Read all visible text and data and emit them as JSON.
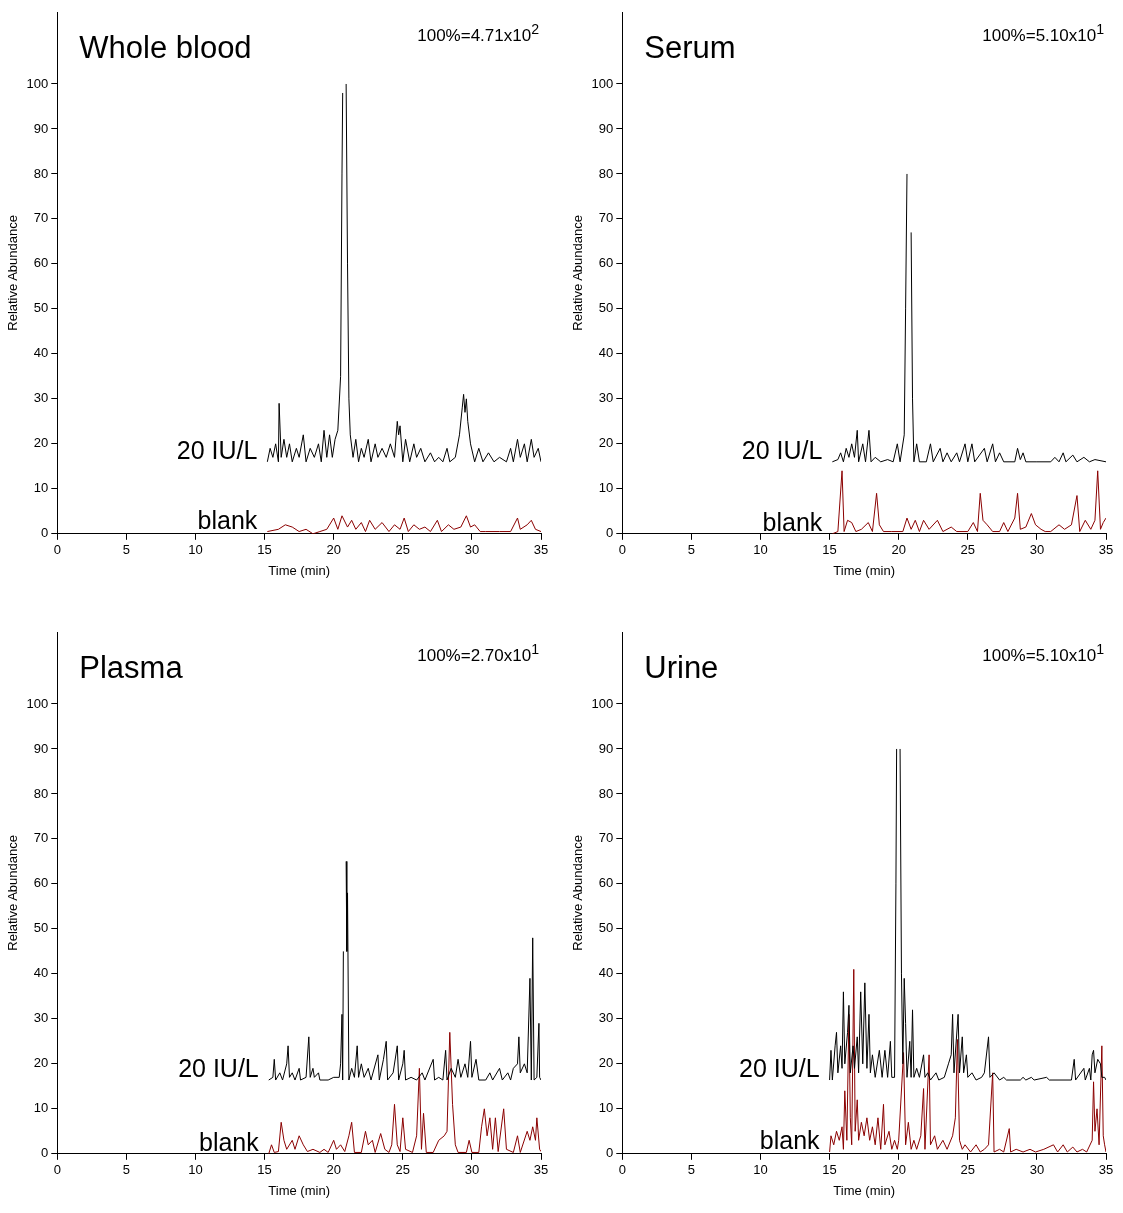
{
  "chart_data": [
    {
      "type": "line",
      "title": "Whole blood",
      "annotations": [
        "100%=4.71x10$^{2}$"
      ],
      "xlabel": "Time (min)",
      "ylabel": "Relative Abundance",
      "xlim": [
        0,
        35
      ],
      "ylim": [
        0,
        116
      ],
      "xticks": [
        0,
        5,
        10,
        15,
        20,
        25,
        30,
        35
      ],
      "yticks": [
        0,
        10,
        20,
        30,
        40,
        50,
        60,
        70,
        80,
        90,
        100
      ],
      "marker": "none",
      "line_style": "solid",
      "series": [
        {
          "name": "20 IU/L",
          "color": "#000000",
          "x": [
            15.2,
            15.4,
            15.6,
            15.8,
            16.0,
            16.05,
            16.2,
            16.4,
            16.6,
            16.8,
            17.0,
            17.3,
            17.5,
            17.8,
            18.0,
            18.3,
            18.6,
            18.9,
            19.1,
            19.3,
            19.5,
            19.7,
            19.9,
            20.1,
            20.3,
            20.5,
            20.6,
            20.65,
            20.7,
            20.8,
            20.9,
            21.0,
            21.1,
            21.2,
            21.4,
            21.6,
            21.8,
            22.0,
            22.2,
            22.5,
            22.7,
            23.0,
            23.2,
            23.5,
            23.8,
            24.1,
            24.4,
            24.6,
            24.7,
            24.8,
            25.0,
            25.2,
            25.5,
            25.8,
            26.0,
            26.3,
            26.6,
            27.0,
            27.3,
            27.6,
            27.9,
            28.2,
            28.4,
            28.8,
            29.1,
            29.3,
            29.4,
            29.5,
            29.6,
            29.7,
            29.9,
            30.2,
            30.5,
            30.8,
            31.2,
            31.6,
            32.0,
            32.5,
            32.8,
            33.0,
            33.3,
            33.5,
            33.8,
            34.0,
            34.3,
            34.5,
            34.8,
            35.0
          ],
          "values": [
            16,
            19,
            17,
            20,
            16,
            29,
            17,
            21,
            17,
            20,
            16,
            19,
            17,
            22,
            16,
            19,
            17,
            20,
            16,
            23,
            17,
            22,
            17,
            21,
            23,
            35,
            80,
            98,
            null,
            null,
            100,
            60,
            30,
            22,
            17,
            21,
            16,
            19,
            17,
            21,
            16,
            20,
            17,
            19,
            17,
            20,
            17,
            25,
            22,
            24,
            16,
            21,
            16,
            20,
            17,
            19,
            16,
            18,
            16,
            17,
            16,
            19,
            16,
            17,
            22,
            28,
            31,
            27,
            30,
            25,
            20,
            16,
            19,
            16,
            18,
            16,
            17,
            16,
            19,
            16,
            21,
            17,
            20,
            16,
            21,
            17,
            19,
            16
          ]
        },
        {
          "name": "blank",
          "color": "#8b0000",
          "x": [
            15.2,
            16,
            16.5,
            17,
            17.5,
            18,
            18.5,
            19,
            19.5,
            20,
            20.3,
            20.6,
            21,
            21.3,
            21.6,
            22,
            22.3,
            22.6,
            23,
            23.5,
            24,
            24.4,
            24.8,
            25.1,
            25.4,
            25.8,
            26.2,
            26.6,
            27,
            27.5,
            27.8,
            28.3,
            28.7,
            29.2,
            29.6,
            29.9,
            30.2,
            30.6,
            31,
            32,
            32.8,
            33.3,
            33.5,
            34,
            34.3,
            34.6,
            35
          ],
          "values": [
            0.5,
            1,
            2,
            1.5,
            0.5,
            1,
            0,
            0.5,
            1,
            3.5,
            1,
            4,
            1.5,
            3,
            1,
            2.5,
            0.5,
            3,
            1,
            2.5,
            0.5,
            2,
            1,
            3.5,
            0.5,
            2,
            1,
            1.5,
            0.5,
            3,
            0.5,
            2,
            1,
            1.5,
            4,
            1.5,
            2,
            0.5,
            0.5,
            0.5,
            0.5,
            3.5,
            1,
            2,
            3,
            1,
            0.5
          ]
        }
      ]
    },
    {
      "type": "line",
      "title": "Serum",
      "annotations": [
        "100%=5.10x10$^{1}$"
      ],
      "xlabel": "Time (min)",
      "ylabel": "Relative Abundance",
      "xlim": [
        0,
        35
      ],
      "ylim": [
        0,
        116
      ],
      "xticks": [
        0,
        5,
        10,
        15,
        20,
        25,
        30,
        35
      ],
      "yticks": [
        0,
        10,
        20,
        30,
        40,
        50,
        60,
        70,
        80,
        90,
        100
      ],
      "marker": "none",
      "line_style": "solid",
      "series": [
        {
          "name": "20 IU/L",
          "color": "#000000",
          "x": [
            15.2,
            15.6,
            15.8,
            16.0,
            16.2,
            16.4,
            16.6,
            16.8,
            17.0,
            17.1,
            17.4,
            17.6,
            17.85,
            18.0,
            18.3,
            18.7,
            19.2,
            19.6,
            19.9,
            20.1,
            20.4,
            20.5,
            20.6,
            20.7,
            20.8,
            20.9,
            21.0,
            21.1,
            21.3,
            21.5,
            22.0,
            22.3,
            22.5,
            23.0,
            23.2,
            23.5,
            23.8,
            24.2,
            24.4,
            24.8,
            25.0,
            25.3,
            25.5,
            26.2,
            26.4,
            26.8,
            27.0,
            27.3,
            27.6,
            28.4,
            28.6,
            28.8,
            29.0,
            29.2,
            30.0,
            31.0,
            31.3,
            31.6,
            31.9,
            32.1,
            32.6,
            32.9,
            33.4,
            33.8,
            34.2,
            35.0
          ],
          "values": [
            16,
            16.5,
            18,
            16,
            19,
            17,
            20,
            17,
            23,
            16,
            20,
            16,
            23,
            16,
            17,
            16,
            16.5,
            16,
            20,
            16,
            22,
            50,
            80,
            null,
            null,
            67,
            30,
            16,
            20,
            16,
            16,
            20,
            16,
            19,
            16,
            18,
            16,
            18,
            16,
            20,
            16,
            20,
            16,
            19,
            16,
            20,
            16,
            18,
            16,
            16,
            19,
            16.5,
            18,
            16,
            16,
            16,
            17,
            16,
            18,
            16,
            17.5,
            16,
            17,
            16,
            16.5,
            16
          ]
        },
        {
          "name": "blank",
          "color": "#8b0000",
          "x": [
            15.2,
            15.6,
            15.9,
            16.05,
            16.3,
            16.6,
            16.9,
            17.3,
            17.8,
            18.1,
            18.4,
            18.6,
            18.9,
            19.5,
            20.3,
            20.6,
            20.9,
            21.2,
            21.5,
            21.8,
            22.2,
            22.8,
            23.2,
            23.8,
            24.2,
            25.0,
            25.4,
            25.7,
            25.9,
            26.1,
            26.4,
            26.8,
            27.3,
            27.6,
            27.9,
            28.4,
            28.6,
            28.8,
            29.2,
            29.6,
            29.9,
            30.3,
            30.6,
            31.0,
            31.6,
            32.0,
            32.5,
            32.9,
            33.1,
            33.5,
            33.9,
            34.2,
            34.4,
            34.6,
            34.8,
            35.0
          ],
          "values": [
            0,
            0.5,
            14,
            0.5,
            3,
            2.5,
            0.5,
            1,
            2.5,
            0.5,
            9,
            2,
            0.5,
            0.5,
            0.5,
            3.5,
            1,
            3,
            0.5,
            3,
            1,
            3,
            0.5,
            1.5,
            0.5,
            0.5,
            2.5,
            0.5,
            9,
            3,
            2,
            0.5,
            0.5,
            2.5,
            0.5,
            3.5,
            9,
            1,
            1.5,
            4.5,
            2,
            1,
            0.5,
            0.5,
            2,
            1,
            2,
            8.5,
            0.5,
            3,
            1,
            3,
            14,
            1,
            2.5,
            3.5
          ]
        }
      ]
    },
    {
      "type": "line",
      "title": "Plasma",
      "annotations": [
        "100%=2.70x10$^{1}$"
      ],
      "xlabel": "Time (min)",
      "ylabel": "Relative Abundance",
      "xlim": [
        0,
        35
      ],
      "ylim": [
        0,
        116
      ],
      "xticks": [
        0,
        5,
        10,
        15,
        20,
        25,
        30,
        35
      ],
      "yticks": [
        0,
        10,
        20,
        30,
        40,
        50,
        60,
        70,
        80,
        90,
        100
      ],
      "marker": "none",
      "line_style": "solid",
      "series": [
        {
          "name": "20 IU/L",
          "color": "#000000",
          "x": [
            15.3,
            15.6,
            15.7,
            15.8,
            16.1,
            16.3,
            16.6,
            16.7,
            16.8,
            17.0,
            17.2,
            17.5,
            17.6,
            18.0,
            18.2,
            18.3,
            18.5,
            18.6,
            18.9,
            19.0,
            19.6,
            20.0,
            20.4,
            20.5,
            20.6,
            20.65,
            20.7,
            20.8,
            20.9,
            20.95,
            21.0,
            21.1,
            21.3,
            21.5,
            21.7,
            21.8,
            22.0,
            22.2,
            22.5,
            22.7,
            23.2,
            23.3,
            23.6,
            23.8,
            23.9,
            24.3,
            24.6,
            24.7,
            25.0,
            25.1,
            25.2,
            25.6,
            26.0,
            26.4,
            26.6,
            27.2,
            27.3,
            27.6,
            27.9,
            28.1,
            28.2,
            28.5,
            28.8,
            29.0,
            29.2,
            29.5,
            29.7,
            29.9,
            30.0,
            30.3,
            30.5,
            31.0,
            31.3,
            31.5,
            32.0,
            32.2,
            32.6,
            32.8,
            33.0,
            33.3,
            33.4,
            33.5,
            33.8,
            34.0,
            34.2,
            34.3,
            34.4,
            34.5,
            34.7,
            34.85,
            34.9,
            35.0
          ],
          "values": [
            16.4,
            17,
            21,
            16.4,
            18,
            16.4,
            20,
            24,
            17,
            18,
            16.4,
            19,
            16.4,
            17,
            26,
            17,
            19,
            17,
            18,
            16.4,
            16.4,
            17,
            17,
            20,
            31,
            16.4,
            45,
            null,
            65,
            45,
            58,
            16.4,
            19,
            17,
            24,
            17,
            20,
            17,
            19,
            16.4,
            22,
            16.4,
            21,
            25,
            16.4,
            18,
            24,
            16.4,
            20,
            23,
            16.4,
            17,
            16.4,
            18,
            16.4,
            21,
            16.4,
            17,
            16.4,
            23,
            16.4,
            19,
            17,
            21,
            17,
            20,
            17,
            25,
            17,
            21,
            16.4,
            16.4,
            18,
            16.4,
            19,
            16.4,
            18,
            16.4,
            19,
            20,
            26,
            18,
            20,
            18,
            39,
            16.4,
            48,
            16.4,
            17,
            29,
            17,
            16.4
          ]
        },
        {
          "name": "blank",
          "color": "#8b0000",
          "x": [
            15.3,
            15.5,
            15.7,
            16.0,
            16.2,
            16.4,
            16.6,
            17.0,
            17.2,
            17.5,
            17.8,
            18.1,
            18.5,
            19.0,
            19.3,
            19.6,
            20.0,
            20.2,
            20.5,
            20.8,
            21.1,
            21.3,
            21.5,
            22.0,
            22.3,
            22.5,
            22.8,
            23.0,
            23.4,
            23.7,
            24.0,
            24.2,
            24.4,
            24.6,
            24.8,
            25.0,
            25.2,
            25.7,
            26.0,
            26.2,
            26.35,
            26.5,
            26.7,
            27.2,
            27.6,
            28.0,
            28.2,
            28.4,
            28.6,
            28.8,
            29.0,
            29.6,
            29.8,
            30.0,
            30.5,
            30.7,
            30.9,
            31.1,
            31.3,
            31.5,
            31.7,
            31.9,
            32.3,
            32.5,
            33.0,
            33.3,
            33.5,
            34.0,
            34.2,
            34.4,
            34.6,
            34.7,
            34.9,
            35.0
          ],
          "values": [
            0,
            2,
            0.3,
            0.5,
            7,
            3,
            1,
            3,
            1,
            4,
            2,
            0.5,
            1,
            0.3,
            1,
            0.3,
            3,
            1,
            2,
            0.5,
            4,
            7,
            0.3,
            0.3,
            5,
            2,
            3,
            0.3,
            4.5,
            1,
            0.3,
            2,
            11,
            2,
            0.5,
            8,
            1,
            0.3,
            4,
            19,
            1,
            9,
            0.3,
            0.3,
            3,
            4,
            5,
            27,
            11,
            2,
            0.3,
            0.3,
            3,
            0.3,
            0.3,
            6,
            10,
            4,
            8,
            1,
            8,
            0.5,
            10,
            1,
            0.3,
            4,
            0.3,
            5,
            3,
            6,
            3,
            8,
            1,
            0.5
          ]
        }
      ]
    },
    {
      "type": "line",
      "title": "Urine",
      "annotations": [
        "100%=5.10x10$^{1}$"
      ],
      "xlabel": "Time (min)",
      "ylabel": "Relative Abundance",
      "xlim": [
        0,
        35
      ],
      "ylim": [
        0,
        116
      ],
      "xticks": [
        0,
        5,
        10,
        15,
        20,
        25,
        30,
        35
      ],
      "yticks": [
        0,
        10,
        20,
        30,
        40,
        50,
        60,
        70,
        80,
        90,
        100
      ],
      "marker": "none",
      "line_style": "solid",
      "series": [
        {
          "name": "20 IU/L",
          "color": "#000000",
          "x": [
            15.0,
            15.1,
            15.2,
            15.4,
            15.5,
            15.6,
            15.8,
            15.9,
            16.0,
            16.1,
            16.3,
            16.4,
            16.5,
            16.7,
            16.8,
            17.0,
            17.1,
            17.25,
            17.4,
            17.55,
            17.7,
            17.85,
            17.95,
            18.1,
            18.3,
            18.6,
            18.8,
            19.0,
            19.2,
            19.4,
            19.5,
            19.7,
            19.8,
            19.85,
            19.9,
            20.0,
            20.1,
            20.2,
            20.3,
            20.4,
            20.5,
            20.6,
            20.8,
            20.9,
            21.0,
            21.1,
            21.3,
            21.5,
            21.8,
            21.9,
            22.1,
            22.3,
            22.7,
            22.9,
            23.3,
            23.6,
            23.8,
            23.9,
            24.0,
            24.3,
            24.4,
            24.6,
            24.7,
            24.9,
            25.0,
            25.3,
            25.6,
            26.0,
            26.2,
            26.5,
            26.6,
            26.9,
            27.3,
            27.6,
            27.8,
            28.8,
            29.0,
            29.2,
            29.6,
            29.8,
            30.7,
            30.9,
            32.5,
            32.7,
            32.8,
            33.4,
            33.5,
            33.8,
            33.9,
            34.0,
            34.1,
            34.2,
            34.4,
            34.6,
            34.7,
            34.9,
            35.0
          ],
          "values": [
            16.4,
            23,
            16.4,
            24,
            27,
            18,
            24,
            19,
            36,
            20,
            27,
            33,
            18,
            24,
            19,
            26,
            18,
            36,
            20,
            38,
            19,
            31,
            18,
            22,
            17,
            23,
            17,
            23,
            17,
            25,
            17,
            17,
            60,
            90,
            null,
            null,
            90,
            40,
            20,
            39,
            29,
            17,
            25,
            17,
            32,
            17,
            19,
            17,
            22,
            17,
            18,
            16.4,
            18,
            16.4,
            17,
            20,
            22,
            31,
            18,
            31,
            18,
            26,
            18,
            22,
            17,
            18,
            16.4,
            17,
            18,
            26,
            17,
            18,
            16.4,
            17,
            16.4,
            16.4,
            17,
            16.4,
            17,
            16.4,
            17,
            16.4,
            16.4,
            21,
            16.4,
            19,
            16.4,
            19,
            16.4,
            22,
            23,
            18,
            21,
            20,
            17,
            17,
            16.4
          ]
        },
        {
          "name": "blank",
          "color": "#8b0000",
          "x": [
            15.0,
            15.1,
            15.3,
            15.5,
            15.7,
            15.9,
            16.0,
            16.1,
            16.25,
            16.4,
            16.5,
            16.6,
            16.75,
            16.85,
            17.0,
            17.1,
            17.3,
            17.5,
            17.7,
            17.9,
            18.1,
            18.3,
            18.5,
            18.7,
            18.9,
            19.0,
            19.3,
            19.5,
            19.7,
            19.9,
            20.0,
            20.35,
            20.5,
            20.7,
            20.9,
            21.1,
            21.3,
            21.6,
            21.8,
            21.9,
            22.2,
            22.3,
            22.6,
            22.8,
            23.2,
            23.5,
            23.9,
            24.1,
            24.25,
            24.4,
            24.6,
            24.8,
            25.2,
            25.6,
            25.9,
            26.2,
            26.5,
            26.8,
            26.9,
            27.3,
            27.6,
            28.0,
            28.1,
            28.5,
            29.0,
            29.5,
            29.9,
            30.5,
            31.2,
            31.5,
            31.9,
            32.2,
            32.6,
            32.9,
            33.3,
            33.6,
            34.0,
            34.1,
            34.2,
            34.35,
            34.5,
            34.7,
            34.8,
            34.9,
            35.0
          ],
          "values": [
            0.4,
            4,
            2,
            5,
            3,
            6,
            1,
            14,
            3,
            31,
            8,
            2,
            41,
            5,
            12,
            3,
            7,
            4,
            8,
            3,
            6,
            2,
            8,
            1,
            11,
            2,
            5,
            1,
            3,
            1,
            3,
            22.5,
            2,
            7,
            1,
            3,
            1,
            4,
            14.5,
            1,
            22,
            2,
            4,
            1,
            3,
            1,
            4,
            8,
            25.4,
            3,
            1,
            2,
            0.4,
            2,
            0.4,
            1,
            2,
            18,
            0.4,
            1,
            0.4,
            5.6,
            0.4,
            1,
            0.4,
            1,
            0.4,
            1,
            2,
            0.4,
            2,
            0.4,
            1.5,
            0.4,
            1,
            0.4,
            3,
            16,
            5,
            10,
            2,
            24,
            4,
            2,
            0.4
          ]
        }
      ]
    }
  ]
}
